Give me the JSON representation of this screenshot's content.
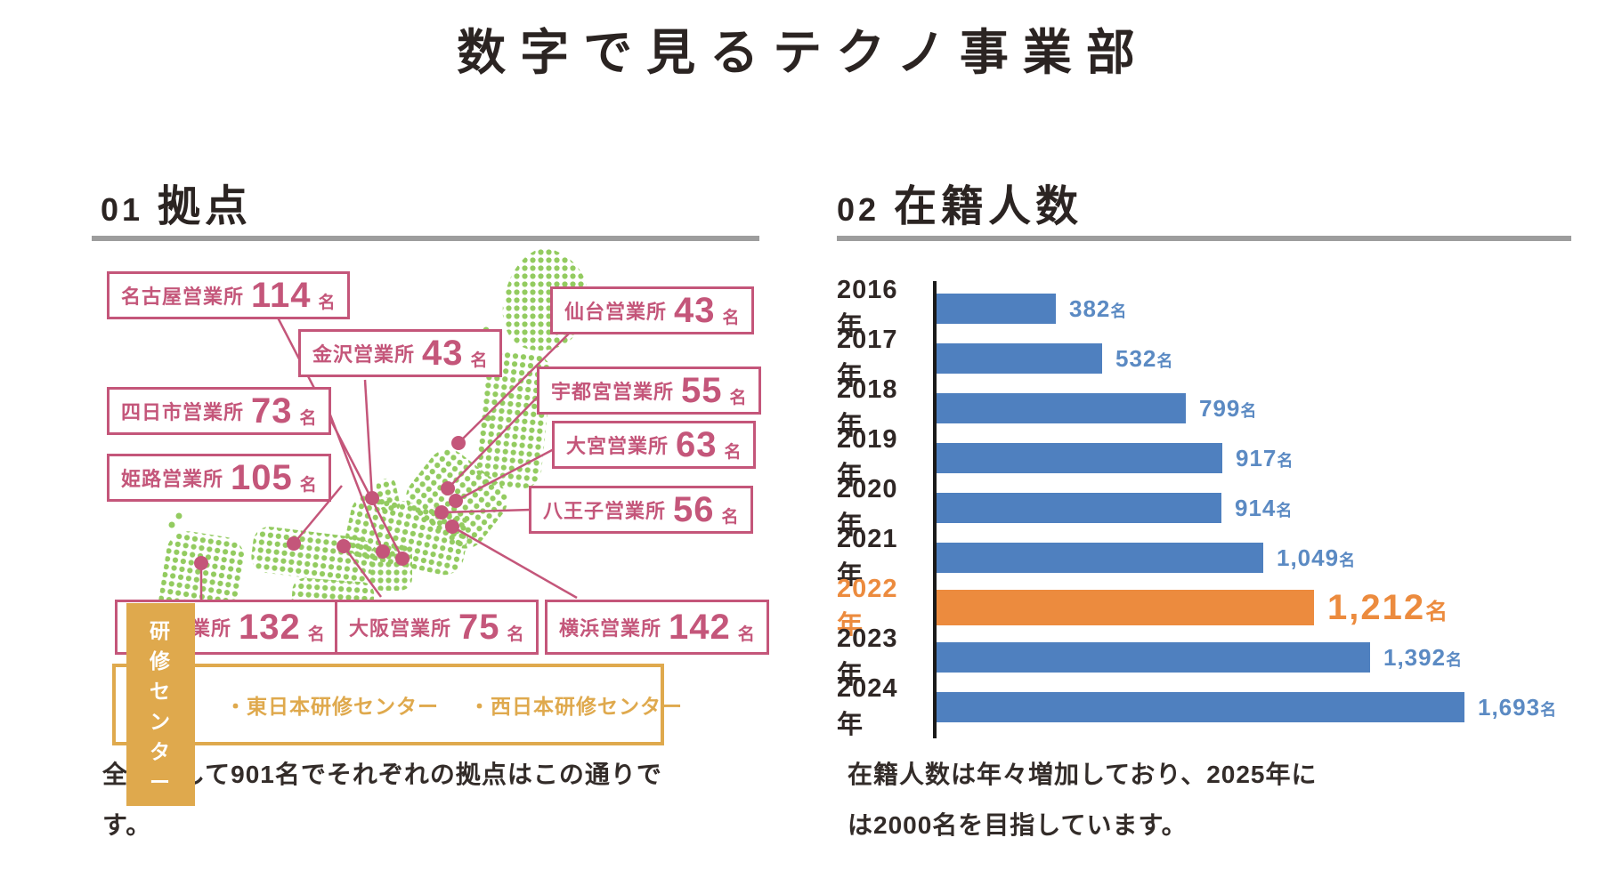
{
  "title": "数字で見るテクノ事業部",
  "sections": {
    "locations": {
      "number": "01",
      "heading": "拠点",
      "offices": [
        {
          "id": "nagoya",
          "name": "名古屋営業所",
          "count": "114",
          "unit": "名"
        },
        {
          "id": "sendai",
          "name": "仙台営業所",
          "count": "43",
          "unit": "名"
        },
        {
          "id": "kanazawa",
          "name": "金沢営業所",
          "count": "43",
          "unit": "名"
        },
        {
          "id": "utsunomiya",
          "name": "宇都宮営業所",
          "count": "55",
          "unit": "名"
        },
        {
          "id": "yokkaichi",
          "name": "四日市営業所",
          "count": "73",
          "unit": "名"
        },
        {
          "id": "omiya",
          "name": "大宮営業所",
          "count": "63",
          "unit": "名"
        },
        {
          "id": "himeji",
          "name": "姫路営業所",
          "count": "105",
          "unit": "名"
        },
        {
          "id": "hachioji",
          "name": "八王子営業所",
          "count": "56",
          "unit": "名"
        },
        {
          "id": "fukuoka",
          "name": "福岡営業所",
          "count": "132",
          "unit": "名"
        },
        {
          "id": "osaka",
          "name": "大阪営業所",
          "count": "75",
          "unit": "名"
        },
        {
          "id": "yokohama",
          "name": "横浜営業所",
          "count": "142",
          "unit": "名"
        }
      ],
      "legend": {
        "badge": "研修センター",
        "items": [
          "・東日本研修センター",
          "・西日本研修センター"
        ]
      },
      "caption": "全体として901名でそれぞれの拠点はこの通りです。"
    },
    "headcount": {
      "number": "02",
      "heading": "在籍人数",
      "caption": "在籍人数は年々増加しており、2025年には2000名を目指しています。"
    }
  },
  "chart_data": {
    "type": "bar",
    "orientation": "horizontal",
    "title": "在籍人数",
    "categories": [
      "2016年",
      "2017年",
      "2018年",
      "2019年",
      "2020年",
      "2021年",
      "2022年",
      "2023年",
      "2024年"
    ],
    "values": [
      382,
      532,
      799,
      917,
      914,
      1049,
      1212,
      1392,
      1693
    ],
    "value_labels": [
      "382",
      "532",
      "799",
      "917",
      "914",
      "1,049",
      "1,212",
      "1,392",
      "1,693"
    ],
    "unit": "名",
    "highlight_index": 6,
    "highlight_category": "2022年",
    "bar_color": "#4f80bf",
    "highlight_color": "#ec8b3e",
    "value_label_color": "#5b8ac3",
    "xlim": [
      0,
      1800
    ],
    "grid": false,
    "legend_position": "none"
  },
  "colors": {
    "accent_pink": "#c4567a",
    "map_green": "#93cb60",
    "bar_blue": "#4f80bf",
    "highlight_orange": "#ec8b3e",
    "legend_gold": "#dfa94d",
    "text_dark": "#2f2725",
    "rule_gray": "#9d9d9d"
  }
}
